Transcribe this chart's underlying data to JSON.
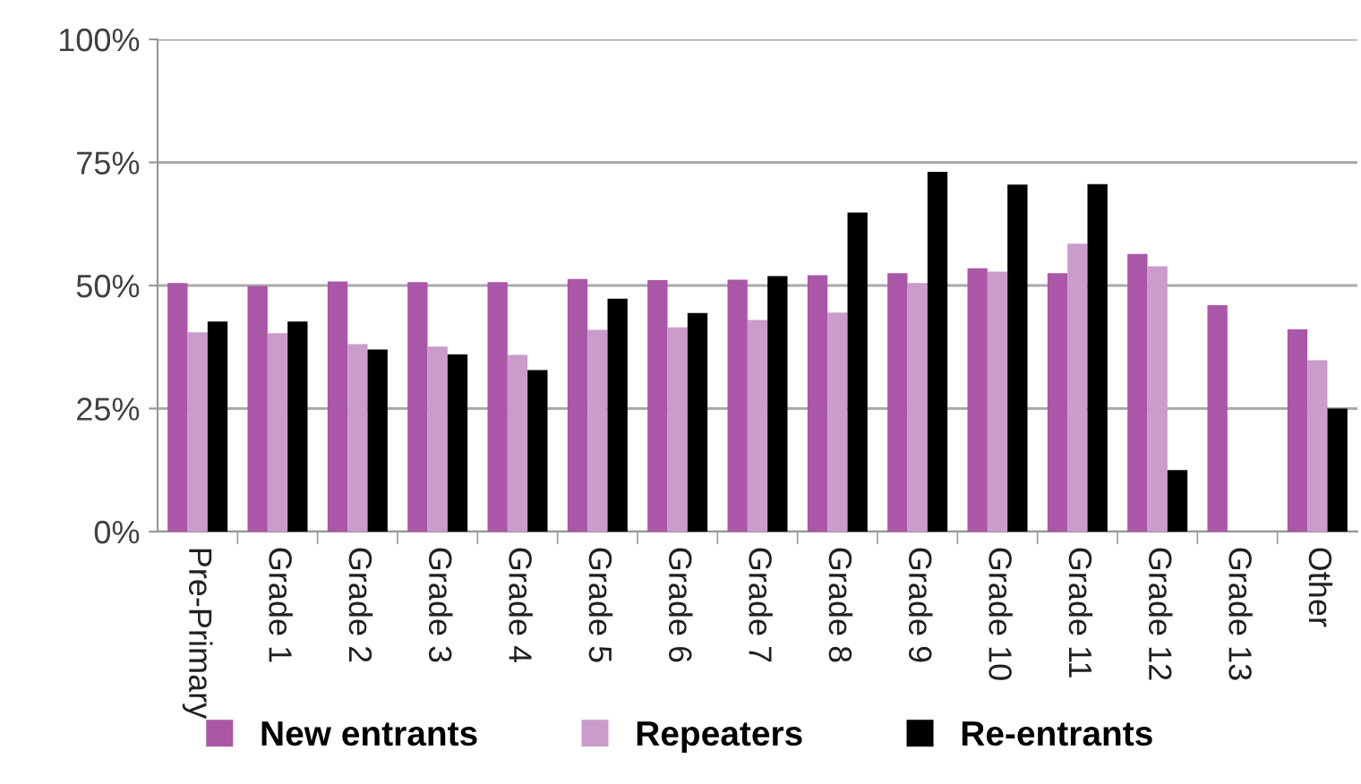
{
  "chart_data": {
    "type": "bar",
    "categories": [
      "Pre-Primary",
      "Grade 1",
      "Grade 2",
      "Grade 3",
      "Grade 4",
      "Grade 5",
      "Grade 6",
      "Grade 7",
      "Grade 8",
      "Grade 9",
      "Grade 10",
      "Grade 11",
      "Grade 12",
      "Grade 13",
      "Other"
    ],
    "series": [
      {
        "name": "New entrants",
        "color": "#a957a6",
        "values": [
          50.5,
          49.9,
          50.8,
          50.7,
          50.7,
          51.3,
          51.1,
          51.2,
          52.1,
          52.5,
          53.5,
          52.5,
          56.4,
          46.0,
          41.1
        ]
      },
      {
        "name": "Repeaters",
        "color": "#c99ccb",
        "values": [
          40.5,
          40.3,
          38.1,
          37.6,
          35.9,
          41.0,
          41.5,
          43.0,
          44.5,
          50.5,
          52.8,
          58.5,
          53.9,
          null,
          34.8
        ]
      },
      {
        "name": "Re-entrants",
        "color": "#000000",
        "values": [
          42.7,
          42.7,
          37.0,
          36.0,
          32.8,
          47.3,
          44.4,
          51.9,
          64.8,
          73.1,
          70.5,
          70.6,
          12.5,
          null,
          25.0
        ]
      }
    ],
    "ylim": [
      0,
      100
    ],
    "yticks": [
      {
        "value": 0,
        "label": "0%"
      },
      {
        "value": 25,
        "label": "25%"
      },
      {
        "value": 50,
        "label": "50%"
      },
      {
        "value": 75,
        "label": "75%"
      },
      {
        "value": 100,
        "label": "100%"
      }
    ],
    "grid": "y",
    "legend": "bottom"
  }
}
